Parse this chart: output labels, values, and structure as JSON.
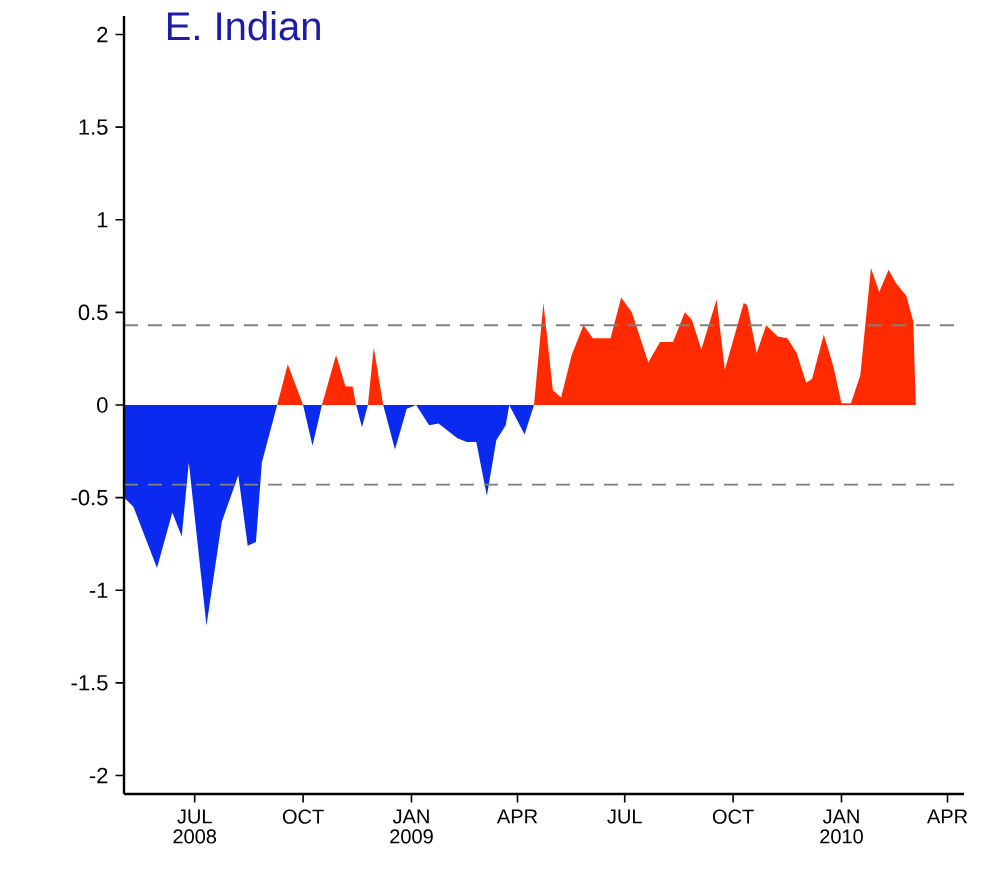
{
  "chart_data": {
    "type": "area",
    "title": "E. Indian",
    "x": [
      "2008-05-02",
      "2008-05-10",
      "2008-05-30",
      "2008-06-12",
      "2008-06-20",
      "2008-06-26",
      "2008-07-11",
      "2008-07-24",
      "2008-08-07",
      "2008-08-15",
      "2008-08-22",
      "2008-08-27",
      "2008-09-09",
      "2008-09-18",
      "2008-10-01",
      "2008-10-09",
      "2008-10-17",
      "2008-10-29",
      "2008-11-06",
      "2008-11-12",
      "2008-11-15",
      "2008-11-20",
      "2008-11-25",
      "2008-11-30",
      "2008-12-08",
      "2008-12-18",
      "2008-12-28",
      "2009-01-05",
      "2009-01-16",
      "2009-01-24",
      "2009-02-09",
      "2009-02-17",
      "2009-02-25",
      "2009-03-06",
      "2009-03-14",
      "2009-03-22",
      "2009-03-25",
      "2009-04-07",
      "2009-04-15",
      "2009-04-23",
      "2009-05-01",
      "2009-05-08",
      "2009-05-17",
      "2009-05-27",
      "2009-06-04",
      "2009-06-19",
      "2009-06-28",
      "2009-07-07",
      "2009-07-21",
      "2009-07-31",
      "2009-08-11",
      "2009-08-21",
      "2009-08-27",
      "2009-09-04",
      "2009-09-17",
      "2009-09-24",
      "2009-10-10",
      "2009-10-13",
      "2009-10-21",
      "2009-10-29",
      "2009-11-08",
      "2009-11-16",
      "2009-11-24",
      "2009-12-02",
      "2009-12-07",
      "2009-12-17",
      "2009-12-25",
      "2010-01-01",
      "2010-01-09",
      "2010-01-17",
      "2010-01-26",
      "2010-02-02",
      "2010-02-10",
      "2010-02-16",
      "2010-02-25",
      "2010-03-03",
      "2010-03-05"
    ],
    "series": [
      {
        "color": "#ff2a00",
        "values": [
          null,
          null,
          null,
          null,
          null,
          null,
          null,
          null,
          null,
          null,
          null,
          null,
          0,
          0.22,
          0,
          null,
          0,
          0.27,
          0.1,
          0.1,
          0,
          null,
          0,
          0.31,
          0,
          null,
          null,
          null,
          null,
          null,
          null,
          null,
          null,
          null,
          null,
          null,
          null,
          null,
          0,
          0.55,
          0.08,
          0.04,
          0.27,
          0.43,
          0.36,
          0.36,
          0.58,
          0.5,
          0.23,
          0.34,
          0.34,
          0.5,
          0.46,
          0.3,
          0.57,
          0.19,
          0.55,
          0.54,
          0.28,
          0.43,
          0.37,
          0.36,
          0.28,
          0.12,
          0.14,
          0.38,
          0.21,
          0.01,
          0.01,
          0.16,
          0.74,
          0.61,
          0.73,
          0.66,
          0.59,
          0.45,
          0
        ]
      },
      {
        "color": "#0a2af0",
        "values": [
          -0.5,
          -0.55,
          -0.88,
          -0.58,
          -0.71,
          -0.31,
          -1.19,
          -0.63,
          -0.38,
          -0.76,
          -0.74,
          -0.31,
          0,
          null,
          0,
          -0.22,
          0,
          null,
          null,
          null,
          0,
          -0.12,
          0,
          null,
          0,
          -0.24,
          -0.02,
          0,
          -0.11,
          -0.1,
          -0.18,
          -0.2,
          -0.2,
          -0.49,
          -0.19,
          -0.11,
          0,
          -0.16,
          0,
          null,
          null,
          null,
          null,
          null,
          null,
          null,
          null,
          null,
          null,
          null,
          null,
          null,
          null,
          null,
          null,
          null,
          null,
          null,
          null,
          null,
          null,
          null,
          null,
          null,
          null,
          null,
          null,
          null,
          null,
          null,
          null,
          null,
          null,
          null,
          null,
          null,
          null
        ]
      }
    ],
    "xlim": [
      "2008-05-02",
      "2010-04-15"
    ],
    "xticks": [
      {
        "value": "2008-07-01",
        "label": "JUL 2008"
      },
      {
        "value": "2008-10-01",
        "label": "OCT"
      },
      {
        "value": "2009-01-01",
        "label": "JAN 2009"
      },
      {
        "value": "2009-04-01",
        "label": "APR"
      },
      {
        "value": "2009-07-01",
        "label": "JUL"
      },
      {
        "value": "2009-10-01",
        "label": "OCT"
      },
      {
        "value": "2010-01-01",
        "label": "JAN 2010"
      },
      {
        "value": "2010-04-01",
        "label": "APR"
      }
    ],
    "ylim": [
      -2.1,
      2.1
    ],
    "yticks": [
      -2,
      -1.5,
      -1,
      -0.5,
      0,
      0.5,
      1,
      1.5,
      2
    ],
    "ref_lines": [
      {
        "axis": "y",
        "value": 0.43,
        "color": "#808080",
        "line_style": "dashed"
      },
      {
        "axis": "y",
        "value": -0.43,
        "color": "#808080",
        "line_style": "dashed"
      }
    ]
  }
}
